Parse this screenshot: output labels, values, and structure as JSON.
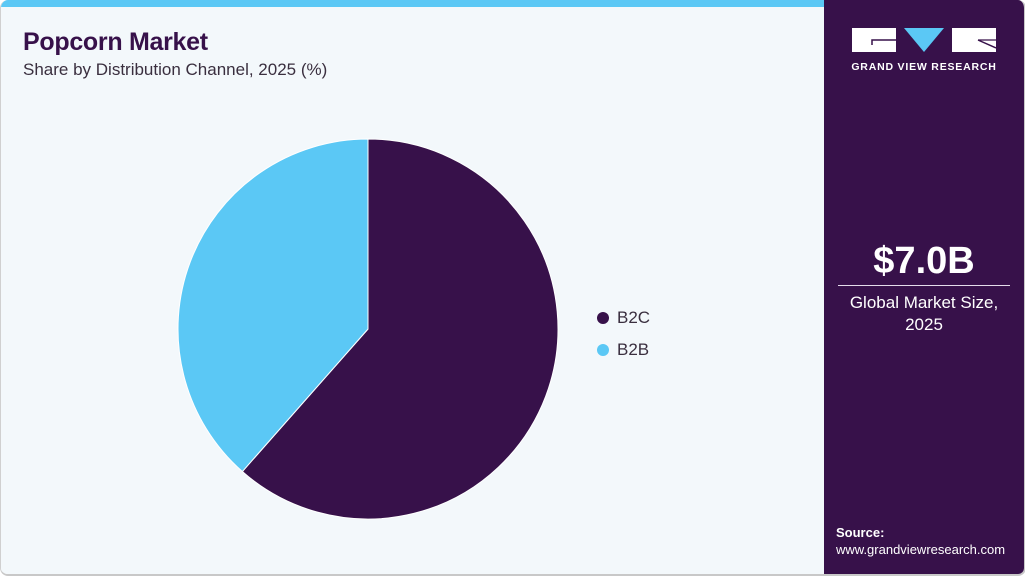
{
  "header": {
    "title": "Popcorn Market",
    "subtitle": "Share by Distribution Channel, 2025 (%)"
  },
  "legend": {
    "items": [
      {
        "label": "B2C",
        "color": "#37114a"
      },
      {
        "label": "B2B",
        "color": "#5bc8f5"
      }
    ]
  },
  "sidebar": {
    "brand": "GRAND VIEW RESEARCH",
    "market_size_value": "$7.0B",
    "market_size_label_line1": "Global Market Size,",
    "market_size_label_line2": "2025",
    "source_label": "Source:",
    "source_url": "www.grandviewresearch.com"
  },
  "colors": {
    "primary": "#37114a",
    "accent": "#5bc8f5",
    "background": "#f3f8fb"
  },
  "chart_data": {
    "type": "pie",
    "title": "Popcorn Market",
    "subtitle": "Share by Distribution Channel, 2025 (%)",
    "categories": [
      "B2C",
      "B2B"
    ],
    "values": [
      61.5,
      38.5
    ],
    "colors": [
      "#37114a",
      "#5bc8f5"
    ],
    "start_angle_deg": 0,
    "direction": "clockwise",
    "legend_position": "right",
    "data_labels": false
  }
}
